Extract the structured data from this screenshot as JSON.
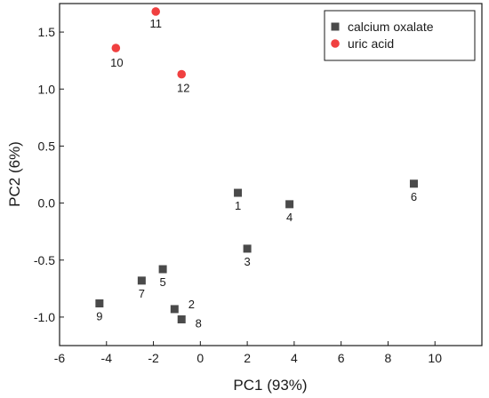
{
  "chart_data": {
    "type": "scatter",
    "title": "",
    "xlabel": "PC1 (93%)",
    "ylabel": "PC2 (6%)",
    "xlim": [
      -6,
      12
    ],
    "ylim": [
      -1.25,
      1.75
    ],
    "xticks": [
      -6,
      -4,
      -2,
      0,
      2,
      4,
      6,
      8,
      10
    ],
    "yticks": [
      -1.0,
      -0.5,
      0.0,
      0.5,
      1.0,
      1.5
    ],
    "xtick_labels": [
      "-6",
      "-4",
      "-2",
      "0",
      "2",
      "4",
      "6",
      "8",
      "10"
    ],
    "ytick_labels": [
      "-1.0",
      "-0.5",
      "0.0",
      "0.5",
      "1.0",
      "1.5"
    ],
    "grid": false,
    "legend_position": "top-right",
    "series": [
      {
        "name": "calcium oxalate",
        "marker": "square",
        "color": "#4a4a4a",
        "points": [
          {
            "label": "1",
            "x": 1.6,
            "y": 0.09
          },
          {
            "label": "2",
            "x": -1.1,
            "y": -0.93
          },
          {
            "label": "3",
            "x": 2.0,
            "y": -0.4
          },
          {
            "label": "4",
            "x": 3.8,
            "y": -0.01
          },
          {
            "label": "5",
            "x": -1.6,
            "y": -0.58
          },
          {
            "label": "6",
            "x": 9.1,
            "y": 0.17
          },
          {
            "label": "7",
            "x": -2.5,
            "y": -0.68
          },
          {
            "label": "8",
            "x": -0.8,
            "y": -1.02
          },
          {
            "label": "9",
            "x": -4.3,
            "y": -0.88
          }
        ]
      },
      {
        "name": "uric acid",
        "marker": "circle",
        "color": "#f04040",
        "points": [
          {
            "label": "10",
            "x": -3.6,
            "y": 1.36
          },
          {
            "label": "11",
            "x": -1.9,
            "y": 1.68
          },
          {
            "label": "12",
            "x": -0.8,
            "y": 1.13
          }
        ]
      }
    ]
  }
}
